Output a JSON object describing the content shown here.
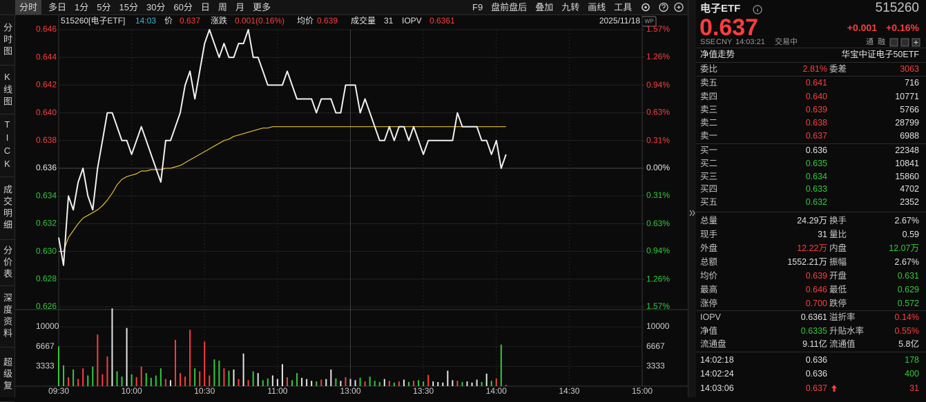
{
  "toolbar": {
    "tabs": [
      "分时",
      "多日",
      "1分",
      "5分",
      "15分",
      "30分",
      "60分",
      "日",
      "周",
      "月",
      "更多"
    ],
    "tools": [
      "F9",
      "盘前盘后",
      "叠加",
      "九转",
      "画线",
      "工具"
    ]
  },
  "sidebar": [
    "分时图",
    "K线图",
    "TICK",
    "成交明细",
    "分价表",
    "深度资料",
    "超级复"
  ],
  "info_bar": {
    "symbol": "515260[电子ETF]",
    "time": "14:03",
    "price_label": "价",
    "price": "0.637",
    "change_label": "涨跌",
    "change": "0.001(0.16%)",
    "avg_label": "均价",
    "avg": "0.639",
    "volume_label": "成交量",
    "volume": "31",
    "iopv_label": "IOPV",
    "iopv": "0.6361",
    "date": "2025/11/18"
  },
  "chart_data": {
    "type": "line",
    "categories": [
      "09:30",
      null,
      null,
      null,
      null,
      null,
      null,
      null,
      null,
      null,
      null,
      null,
      null,
      null,
      null,
      "10:00",
      null,
      null,
      null,
      null,
      null,
      null,
      null,
      null,
      null,
      null,
      null,
      null,
      null,
      null,
      "10:30",
      null,
      null,
      null,
      null,
      null,
      null,
      null,
      null,
      null,
      null,
      null,
      null,
      null,
      null,
      "11:00",
      null,
      null,
      null,
      null,
      null,
      null,
      null,
      null,
      null,
      null,
      null,
      null,
      null,
      null,
      "13:00",
      null,
      null,
      null,
      null,
      null,
      null,
      null,
      null,
      null,
      null,
      null,
      null,
      null,
      null,
      "13:30",
      null,
      null,
      null,
      null,
      null,
      null,
      null,
      null,
      null,
      null,
      null,
      null,
      null,
      null,
      "14:00",
      null,
      null,
      null,
      null,
      null,
      null,
      null,
      null,
      null,
      null,
      null,
      null,
      null,
      null,
      "14:30",
      null,
      null,
      null,
      null,
      null,
      null,
      null,
      null,
      null,
      null,
      null,
      null,
      null,
      null,
      "15:00"
    ],
    "series": [
      {
        "color": "#f2f2f2",
        "values": [
          0.631,
          0.629,
          0.634,
          0.633,
          0.635,
          0.636,
          0.634,
          0.633,
          0.636,
          0.638,
          0.64,
          0.64,
          0.639,
          0.638,
          0.638,
          0.637,
          0.638,
          0.639,
          0.638,
          0.637,
          0.636,
          0.635,
          0.638,
          0.638,
          0.639,
          0.64,
          0.642,
          0.643,
          0.641,
          0.643,
          0.645,
          0.646,
          0.645,
          0.644,
          0.645,
          0.644,
          0.644,
          0.645,
          0.645,
          0.646,
          0.644,
          0.644,
          0.643,
          0.642,
          0.642,
          0.642,
          0.642,
          0.643,
          0.642,
          0.641,
          0.641,
          0.641,
          0.641,
          0.64,
          0.641,
          0.641,
          0.641,
          0.64,
          0.64,
          0.642,
          0.642,
          0.642,
          0.64,
          0.641,
          0.64,
          0.639,
          0.638,
          0.638,
          0.639,
          0.638,
          0.639,
          0.639,
          0.638,
          0.639,
          0.638,
          0.637,
          0.638,
          0.638,
          0.638,
          0.638,
          0.638,
          0.638,
          0.64,
          0.639,
          0.639,
          0.639,
          0.639,
          0.638,
          0.638,
          0.637,
          0.638,
          0.636,
          0.637,
          null,
          null,
          null,
          null,
          null,
          null,
          null,
          null,
          null,
          null,
          null,
          null,
          null,
          null,
          null,
          null,
          null,
          null,
          null,
          null,
          null,
          null,
          null,
          null,
          null,
          null,
          null,
          null
        ]
      },
      {
        "color": "#e3c02a",
        "values": [
          0.63,
          0.63,
          0.631,
          0.6315,
          0.632,
          0.6324,
          0.6326,
          0.6328,
          0.633,
          0.6333,
          0.6337,
          0.6342,
          0.6348,
          0.6352,
          0.6354,
          0.6355,
          0.6356,
          0.6358,
          0.6358,
          0.6359,
          0.6359,
          0.6359,
          0.636,
          0.636,
          0.6361,
          0.6362,
          0.6364,
          0.6366,
          0.6368,
          0.637,
          0.6372,
          0.6374,
          0.6376,
          0.6378,
          0.638,
          0.6381,
          0.6383,
          0.6384,
          0.6385,
          0.6386,
          0.6387,
          0.6388,
          0.6389,
          0.6389,
          0.639,
          0.639,
          0.639,
          0.639,
          0.639,
          0.639,
          0.639,
          0.639,
          0.639,
          0.639,
          0.639,
          0.639,
          0.639,
          0.639,
          0.639,
          0.639,
          0.639,
          0.639,
          0.639,
          0.639,
          0.639,
          0.639,
          0.639,
          0.639,
          0.639,
          0.639,
          0.639,
          0.639,
          0.639,
          0.639,
          0.639,
          0.639,
          0.639,
          0.639,
          0.639,
          0.639,
          0.639,
          0.639,
          0.639,
          0.639,
          0.639,
          0.639,
          0.639,
          0.639,
          0.639,
          0.639,
          0.639,
          0.639,
          0.639,
          null,
          null,
          null,
          null,
          null,
          null,
          null,
          null,
          null,
          null,
          null,
          null,
          null,
          null,
          null,
          null,
          null,
          null,
          null,
          null,
          null,
          null,
          null,
          null,
          null,
          null,
          null,
          null
        ]
      }
    ],
    "ylim": [
      0.626,
      0.646
    ],
    "yticks": [
      0.646,
      0.644,
      0.642,
      {
        "value": 0.64,
        "label": "0.640"
      },
      0.638,
      0.636,
      0.634,
      0.632,
      {
        "value": 0.63,
        "label": "0.630"
      },
      0.628,
      0.626
    ],
    "y2lim": [
      -1.57,
      1.57
    ],
    "y2ticks": [
      {
        "value": 1.57,
        "label": "1.57%"
      },
      {
        "value": 1.26,
        "label": "1.26%"
      },
      {
        "value": 0.94,
        "label": "0.94%"
      },
      {
        "value": 0.63,
        "label": "0.63%"
      },
      {
        "value": 0.31,
        "label": "0.31%"
      },
      {
        "value": 0,
        "label": "0.00%"
      },
      {
        "value": -0.31,
        "label": "0.31%"
      },
      {
        "value": -0.63,
        "label": "0.63%"
      },
      {
        "value": -0.94,
        "label": "0.94%"
      },
      {
        "value": -1.26,
        "label": "1.26%"
      },
      {
        "value": -1.57,
        "label": "1.57%"
      }
    ],
    "volume": {
      "values": [
        6700,
        3500,
        1500,
        2800,
        1200,
        3000,
        1800,
        3300,
        8700,
        2000,
        5000,
        13100,
        2500,
        1600,
        9800,
        2000,
        1500,
        3300,
        2200,
        1400,
        1800,
        3000,
        1200,
        1000,
        7800,
        2200,
        1600,
        9500,
        3000,
        2500,
        7500,
        1800,
        4500,
        4300,
        3000,
        2600,
        2800,
        1200,
        5500,
        1000,
        2500,
        2200,
        1000,
        1300,
        1800,
        1200,
        3700,
        1500,
        1000,
        2200,
        1400,
        1200,
        900,
        800,
        1100,
        1200,
        2800,
        1300,
        900,
        1500,
        1200,
        1000,
        1400,
        800,
        1600,
        900,
        700,
        1200,
        900,
        600,
        800,
        1100,
        700,
        900,
        1000,
        800,
        1900,
        800,
        700,
        600,
        2600,
        1000,
        900,
        700,
        800,
        600,
        1100,
        700,
        2100,
        900,
        1300,
        7000,
        200,
        null,
        null,
        null,
        null,
        null,
        null,
        null,
        null,
        null,
        null,
        null,
        null,
        null,
        null,
        null,
        null,
        null,
        null,
        null,
        null,
        null,
        null,
        null,
        null,
        null,
        null,
        null,
        null
      ],
      "ylim": [
        0,
        12900
      ],
      "yticks": [
        10000,
        6667,
        3333
      ]
    },
    "colors": {
      "up": "#ff3d3d",
      "down": "#2fcc3a",
      "flat": "#e6e6e6"
    },
    "grid": true
  },
  "quote": {
    "name": "电子ETF",
    "code": "515260",
    "price": "0.637",
    "change": "+0.001",
    "change_pct": "+0.16%",
    "exchange": "SSE",
    "currency": "CNY",
    "time": "14:03:21",
    "status": "交易中",
    "tags": [
      "通",
      "融"
    ],
    "nav_link": "净值走势",
    "fund_name": "华宝中证电子50ETF",
    "book_summary": [
      "委比",
      "2.81%",
      "委差",
      "3063"
    ],
    "asks": [
      [
        "卖五",
        "0.641",
        "716"
      ],
      [
        "卖四",
        "0.640",
        "10771"
      ],
      [
        "卖三",
        "0.639",
        "5766"
      ],
      [
        "卖二",
        "0.638",
        "28799"
      ],
      [
        "卖一",
        "0.637",
        "6988"
      ]
    ],
    "bids": [
      [
        "买一",
        "0.636",
        "22348"
      ],
      [
        "买二",
        "0.635",
        "10841"
      ],
      [
        "买三",
        "0.634",
        "15860"
      ],
      [
        "买四",
        "0.633",
        "4702"
      ],
      [
        "买五",
        "0.632",
        "2352"
      ]
    ],
    "stats": [
      [
        "总量",
        "24.29万",
        "换手",
        "2.67%"
      ],
      [
        "现手",
        "31",
        "量比",
        "0.59"
      ],
      [
        "外盘",
        "12.22万",
        "内盘",
        "12.07万"
      ],
      [
        "总额",
        "1552.21万",
        "振幅",
        "2.67%"
      ],
      [
        "均价",
        "0.639",
        "开盘",
        "0.631"
      ],
      [
        "最高",
        "0.646",
        "最低",
        "0.629"
      ],
      [
        "涨停",
        "0.700",
        "跌停",
        "0.572"
      ]
    ],
    "fund": [
      [
        "IOPV",
        "0.6361",
        "溢折率",
        "0.14%"
      ],
      [
        "净值",
        "0.6335",
        "升贴水率",
        "0.55%"
      ],
      [
        "流通盘",
        "9.11亿",
        "流通值",
        "5.8亿"
      ]
    ],
    "trades": [
      [
        "14:02:18",
        "0.636",
        "178"
      ],
      [
        "14:02:24",
        "0.636",
        "400"
      ],
      [
        "14:03:06",
        "0.637",
        "31"
      ]
    ]
  }
}
